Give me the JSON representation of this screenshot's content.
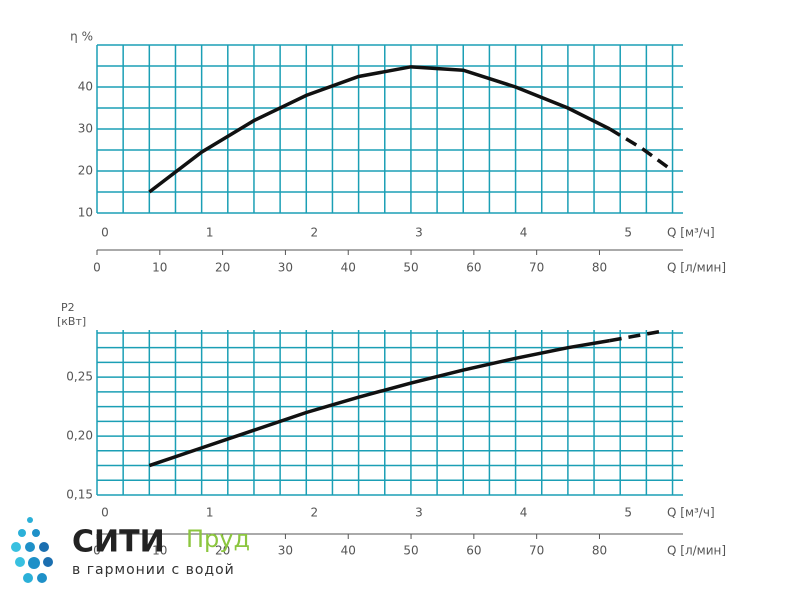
{
  "chart_data": [
    {
      "type": "line",
      "y_label": "η %",
      "x_label": "Q [м³/ч]",
      "x2_label": "Q [л/мин]",
      "xlim": [
        0,
        5.6
      ],
      "xticks": [
        0,
        1,
        2,
        3,
        4,
        5
      ],
      "x2lim": [
        0,
        93.3
      ],
      "x2ticks": [
        0,
        10,
        20,
        30,
        40,
        50,
        60,
        70,
        80
      ],
      "ylim": [
        10,
        50
      ],
      "yticks": [
        10,
        20,
        30,
        40
      ],
      "xgrid": [
        0,
        0.25,
        0.5,
        0.75,
        1,
        1.25,
        1.5,
        1.75,
        2,
        2.25,
        2.5,
        2.75,
        3,
        3.25,
        3.5,
        3.75,
        4,
        4.25,
        4.5,
        4.75,
        5,
        5.25,
        5.5
      ],
      "ygrid": [
        10,
        15,
        20,
        25,
        30,
        35,
        40,
        45,
        50
      ],
      "grid_color": "#1b9fb5",
      "series": [
        {
          "color": "#111111",
          "style": "solid",
          "x": [
            0.5,
            1,
            1.5,
            2,
            2.5,
            3,
            3.5,
            4,
            4.5,
            4.9
          ],
          "values": [
            15,
            24.5,
            32,
            38,
            42.5,
            44.8,
            44,
            40,
            35,
            30
          ]
        },
        {
          "color": "#111111",
          "style": "dashed",
          "x": [
            4.9,
            5.2,
            5.45
          ],
          "values": [
            30,
            25.5,
            21
          ]
        }
      ]
    },
    {
      "type": "line",
      "y_label": "P2",
      "y_unit": "[кВт]",
      "x_label": "Q [м³/ч]",
      "x2_label": "Q [л/мин]",
      "xlim": [
        0,
        5.6
      ],
      "xticks": [
        0,
        1,
        2,
        3,
        4,
        5
      ],
      "x2lim": [
        0,
        93.3
      ],
      "x2ticks": [
        0,
        10,
        20,
        30,
        40,
        50,
        60,
        70,
        80
      ],
      "ylim": [
        0.15,
        0.29
      ],
      "yticks": [
        {
          "value": 0.15,
          "label": "0,15"
        },
        {
          "value": 0.2,
          "label": "0,20"
        },
        {
          "value": 0.25,
          "label": "0,25"
        }
      ],
      "xgrid": [
        0,
        0.25,
        0.5,
        0.75,
        1,
        1.25,
        1.5,
        1.75,
        2,
        2.25,
        2.5,
        2.75,
        3,
        3.25,
        3.5,
        3.75,
        4,
        4.25,
        4.5,
        4.75,
        5,
        5.25,
        5.5
      ],
      "ygrid": [
        0.15,
        0.1625,
        0.175,
        0.1875,
        0.2,
        0.2125,
        0.225,
        0.2375,
        0.25,
        0.2625,
        0.275,
        0.2875
      ],
      "grid_color": "#1b9fb5",
      "series": [
        {
          "color": "#111111",
          "style": "solid",
          "x": [
            0.5,
            1,
            1.5,
            2,
            2.5,
            3,
            3.5,
            4,
            4.5,
            4.9
          ],
          "values": [
            0.175,
            0.19,
            0.205,
            0.22,
            0.233,
            0.245,
            0.256,
            0.266,
            0.275,
            0.281
          ]
        },
        {
          "color": "#111111",
          "style": "dashed",
          "x": [
            4.9,
            5.15,
            5.4
          ],
          "values": [
            0.281,
            0.285,
            0.289
          ]
        }
      ]
    }
  ],
  "logo": {
    "name_dark": "СИТИ",
    "name_light": "Пруд",
    "tagline": "в гармонии с водой"
  }
}
